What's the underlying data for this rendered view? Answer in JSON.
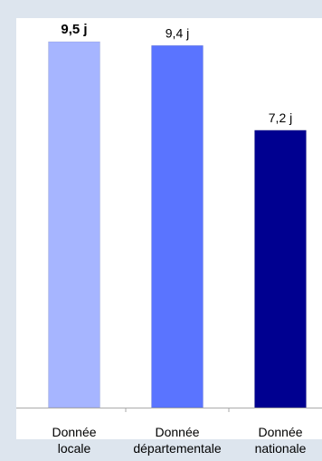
{
  "chart_data": {
    "type": "bar",
    "categories": [
      [
        "Donnée",
        "locale"
      ],
      [
        "Donnée",
        "départementale"
      ],
      [
        "Donnée",
        "nationale"
      ]
    ],
    "values": [
      9.5,
      9.4,
      7.2
    ],
    "data_labels": [
      "9,5 j",
      "9,4 j",
      "7,2 j"
    ],
    "highlight_index": 0,
    "ylim": [
      0,
      10
    ],
    "grid": false,
    "legend": "none",
    "colors": {
      "background": "#dde5ee",
      "plot_area": "#ffffff",
      "bars": [
        "#a6b5ff",
        "#5a74ff",
        "#000090"
      ],
      "axis": "#aaaaaa"
    }
  }
}
